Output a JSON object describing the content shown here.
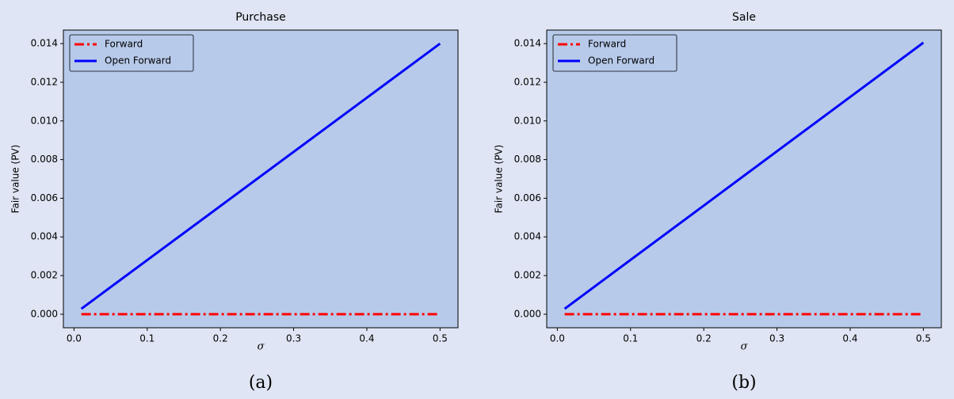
{
  "chart_data": [
    {
      "type": "line",
      "title": "Purchase",
      "xlabel": "σ",
      "ylabel": "Fair value (PV)",
      "caption": "(a)",
      "x": [
        0.01,
        0.5
      ],
      "series": [
        {
          "name": "Forward",
          "color": "#ff0000",
          "linestyle": "dashdot",
          "values": [
            0,
            0
          ]
        },
        {
          "name": "Open Forward",
          "color": "#0000ff",
          "linestyle": "solid",
          "values": [
            0.00028,
            0.014
          ]
        }
      ],
      "xlim": [
        -0.0145,
        0.5245
      ],
      "xticks": [
        {
          "value": 0,
          "label": "0.0"
        },
        0.1,
        0.2,
        0.3,
        0.4,
        0.5
      ],
      "ylim": [
        -0.0007,
        0.0147
      ],
      "yticks": [
        {
          "value": 0,
          "label": "0.000"
        },
        0.002,
        0.004,
        0.006,
        0.008,
        {
          "value": 0.01,
          "label": "0.010"
        },
        0.012,
        0.014
      ],
      "legend": "upper left"
    },
    {
      "type": "line",
      "title": "Sale",
      "xlabel": "σ",
      "ylabel": "Fair value (PV)",
      "caption": "(b)",
      "x": [
        0.01,
        0.5
      ],
      "series": [
        {
          "name": "Forward",
          "color": "#ff0000",
          "linestyle": "dashdot",
          "values": [
            0,
            0
          ]
        },
        {
          "name": "Open Forward",
          "color": "#0000ff",
          "linestyle": "solid",
          "values": [
            0.00028,
            0.01405
          ]
        }
      ],
      "xlim": [
        -0.0145,
        0.5245
      ],
      "xticks": [
        {
          "value": 0,
          "label": "0.0"
        },
        0.1,
        0.2,
        0.3,
        0.4,
        0.5
      ],
      "ylim": [
        -0.0007,
        0.0147
      ],
      "yticks": [
        {
          "value": 0,
          "label": "0.000"
        },
        0.002,
        0.004,
        0.006,
        0.008,
        {
          "value": 0.01,
          "label": "0.010"
        },
        0.012,
        0.014
      ],
      "legend": "upper left"
    }
  ]
}
